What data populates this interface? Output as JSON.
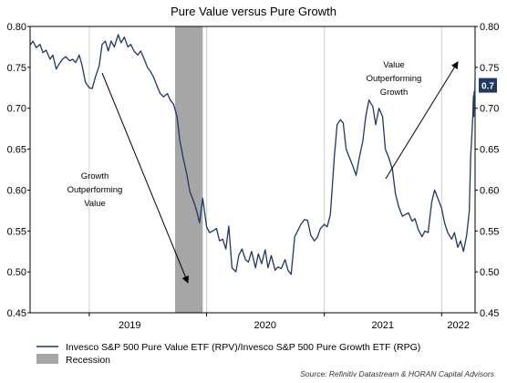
{
  "colors": {
    "line": "#1f3864",
    "recession": "#a6a6a6",
    "badge": "#1f3864",
    "grid": "#d0d0d0",
    "arrow": "#000000"
  },
  "chart_data": {
    "type": "line",
    "title": "Pure Value versus Pure Growth",
    "x_axis": {
      "type": "date",
      "start": "2018-07-01",
      "end": "2022-04-15",
      "tick_labels": [
        "2019",
        "2020",
        "2021",
        "2022"
      ],
      "grid": "vertical"
    },
    "y_axis": {
      "ylim": [
        0.45,
        0.8
      ],
      "ticks": [
        0.45,
        0.5,
        0.55,
        0.6,
        0.65,
        0.7,
        0.75,
        0.8
      ],
      "tick_labels": [
        "0.45",
        "0.50",
        "0.55",
        "0.60",
        "0.65",
        "0.70",
        "0.75",
        "0.80"
      ],
      "mirrored_right": true
    },
    "series": [
      {
        "name": "Invesco S&P 500 Pure Value ETF (RPV)/Invesco S&P 500 Pure Growth ETF (RPG)",
        "points": [
          [
            "2018-07-01",
            0.777
          ],
          [
            "2018-07-10",
            0.782
          ],
          [
            "2018-07-20",
            0.774
          ],
          [
            "2018-08-01",
            0.778
          ],
          [
            "2018-08-10",
            0.768
          ],
          [
            "2018-08-20",
            0.771
          ],
          [
            "2018-09-01",
            0.76
          ],
          [
            "2018-09-10",
            0.765
          ],
          [
            "2018-09-20",
            0.748
          ],
          [
            "2018-10-01",
            0.755
          ],
          [
            "2018-10-10",
            0.76
          ],
          [
            "2018-10-20",
            0.763
          ],
          [
            "2018-11-01",
            0.758
          ],
          [
            "2018-11-10",
            0.76
          ],
          [
            "2018-11-20",
            0.756
          ],
          [
            "2018-12-01",
            0.765
          ],
          [
            "2018-12-10",
            0.752
          ],
          [
            "2018-12-20",
            0.732
          ],
          [
            "2019-01-01",
            0.725
          ],
          [
            "2019-01-10",
            0.724
          ],
          [
            "2019-01-20",
            0.738
          ],
          [
            "2019-02-01",
            0.752
          ],
          [
            "2019-02-10",
            0.778
          ],
          [
            "2019-02-20",
            0.782
          ],
          [
            "2019-03-01",
            0.77
          ],
          [
            "2019-03-10",
            0.782
          ],
          [
            "2019-03-20",
            0.775
          ],
          [
            "2019-04-01",
            0.79
          ],
          [
            "2019-04-10",
            0.78
          ],
          [
            "2019-04-20",
            0.787
          ],
          [
            "2019-05-01",
            0.775
          ],
          [
            "2019-05-10",
            0.778
          ],
          [
            "2019-05-20",
            0.77
          ],
          [
            "2019-06-01",
            0.765
          ],
          [
            "2019-06-10",
            0.77
          ],
          [
            "2019-06-20",
            0.761
          ],
          [
            "2019-07-01",
            0.75
          ],
          [
            "2019-07-10",
            0.745
          ],
          [
            "2019-07-20",
            0.738
          ],
          [
            "2019-08-01",
            0.726
          ],
          [
            "2019-08-10",
            0.718
          ],
          [
            "2019-08-20",
            0.714
          ],
          [
            "2019-09-01",
            0.718
          ],
          [
            "2019-09-10",
            0.71
          ],
          [
            "2019-09-20",
            0.705
          ],
          [
            "2019-10-01",
            0.69
          ],
          [
            "2019-10-10",
            0.66
          ],
          [
            "2019-10-20",
            0.64
          ],
          [
            "2019-11-01",
            0.618
          ],
          [
            "2019-11-10",
            0.598
          ],
          [
            "2019-11-20",
            0.588
          ],
          [
            "2019-12-01",
            0.575
          ],
          [
            "2019-12-10",
            0.56
          ],
          [
            "2019-12-20",
            0.59
          ],
          [
            "2020-01-01",
            0.555
          ],
          [
            "2020-01-10",
            0.548
          ],
          [
            "2020-01-20",
            0.55
          ],
          [
            "2020-02-01",
            0.553
          ],
          [
            "2020-02-10",
            0.538
          ],
          [
            "2020-02-20",
            0.54
          ],
          [
            "2020-03-01",
            0.528
          ],
          [
            "2020-03-10",
            0.556
          ],
          [
            "2020-03-20",
            0.505
          ],
          [
            "2020-04-01",
            0.5
          ],
          [
            "2020-04-10",
            0.52
          ],
          [
            "2020-04-20",
            0.528
          ],
          [
            "2020-05-01",
            0.515
          ],
          [
            "2020-05-10",
            0.512
          ],
          [
            "2020-05-20",
            0.525
          ],
          [
            "2020-06-01",
            0.505
          ],
          [
            "2020-06-10",
            0.522
          ],
          [
            "2020-06-20",
            0.51
          ],
          [
            "2020-07-01",
            0.527
          ],
          [
            "2020-07-10",
            0.505
          ],
          [
            "2020-07-20",
            0.52
          ],
          [
            "2020-08-01",
            0.502
          ],
          [
            "2020-08-10",
            0.506
          ],
          [
            "2020-08-20",
            0.504
          ],
          [
            "2020-09-01",
            0.515
          ],
          [
            "2020-09-10",
            0.502
          ],
          [
            "2020-09-20",
            0.497
          ],
          [
            "2020-10-01",
            0.543
          ],
          [
            "2020-10-10",
            0.55
          ],
          [
            "2020-10-20",
            0.558
          ],
          [
            "2020-11-01",
            0.564
          ],
          [
            "2020-11-10",
            0.563
          ],
          [
            "2020-11-20",
            0.545
          ],
          [
            "2020-12-01",
            0.538
          ],
          [
            "2020-12-10",
            0.542
          ],
          [
            "2020-12-20",
            0.553
          ],
          [
            "2021-01-01",
            0.558
          ],
          [
            "2021-01-10",
            0.555
          ],
          [
            "2021-01-20",
            0.57
          ],
          [
            "2021-02-01",
            0.64
          ],
          [
            "2021-02-10",
            0.68
          ],
          [
            "2021-02-20",
            0.686
          ],
          [
            "2021-03-01",
            0.682
          ],
          [
            "2021-03-10",
            0.65
          ],
          [
            "2021-03-20",
            0.64
          ],
          [
            "2021-04-01",
            0.628
          ],
          [
            "2021-04-10",
            0.618
          ],
          [
            "2021-04-20",
            0.64
          ],
          [
            "2021-05-01",
            0.66
          ],
          [
            "2021-05-10",
            0.69
          ],
          [
            "2021-05-20",
            0.71
          ],
          [
            "2021-06-01",
            0.702
          ],
          [
            "2021-06-10",
            0.68
          ],
          [
            "2021-06-20",
            0.7
          ],
          [
            "2021-07-01",
            0.69
          ],
          [
            "2021-07-10",
            0.65
          ],
          [
            "2021-07-20",
            0.64
          ],
          [
            "2021-08-01",
            0.625
          ],
          [
            "2021-08-10",
            0.596
          ],
          [
            "2021-08-20",
            0.58
          ],
          [
            "2021-09-01",
            0.568
          ],
          [
            "2021-09-10",
            0.57
          ],
          [
            "2021-09-20",
            0.572
          ],
          [
            "2021-10-01",
            0.562
          ],
          [
            "2021-10-10",
            0.565
          ],
          [
            "2021-10-20",
            0.552
          ],
          [
            "2021-11-01",
            0.543
          ],
          [
            "2021-11-10",
            0.55
          ],
          [
            "2021-11-20",
            0.548
          ],
          [
            "2021-12-01",
            0.585
          ],
          [
            "2021-12-10",
            0.6
          ],
          [
            "2021-12-20",
            0.59
          ],
          [
            "2022-01-01",
            0.578
          ],
          [
            "2022-01-10",
            0.56
          ],
          [
            "2022-01-20",
            0.548
          ],
          [
            "2022-02-01",
            0.54
          ],
          [
            "2022-02-10",
            0.548
          ],
          [
            "2022-02-20",
            0.53
          ],
          [
            "2022-03-01",
            0.538
          ],
          [
            "2022-03-10",
            0.525
          ],
          [
            "2022-03-20",
            0.545
          ],
          [
            "2022-03-28",
            0.575
          ],
          [
            "2022-04-01",
            0.64
          ],
          [
            "2022-04-04",
            0.66
          ],
          [
            "2022-04-06",
            0.675
          ],
          [
            "2022-04-08",
            0.69
          ],
          [
            "2022-04-09",
            0.705
          ],
          [
            "2022-04-10",
            0.715
          ],
          [
            "2022-04-11",
            0.69
          ],
          [
            "2022-04-12",
            0.72
          ],
          [
            "2022-04-13",
            0.7
          ],
          [
            "2022-04-14",
            0.712
          ],
          [
            "2022-04-15",
            0.738
          ]
        ]
      }
    ],
    "recession": {
      "start": "2019-09-25",
      "end": "2019-12-20"
    },
    "last_value_label": "0.7",
    "annotations": [
      {
        "lines": [
          "Growth",
          "Outperforming",
          "Value"
        ]
      },
      {
        "lines": [
          "Value",
          "Outperforming",
          "Growth"
        ]
      }
    ],
    "legend": [
      {
        "label": "Invesco S&P 500 Pure Value ETF (RPV)/Invesco S&P 500 Pure Growth ETF (RPG)",
        "kind": "line"
      },
      {
        "label": "Recession",
        "kind": "area"
      }
    ],
    "source": "Source: Refinitiv Datastream & HORAN Capital Advisors"
  }
}
